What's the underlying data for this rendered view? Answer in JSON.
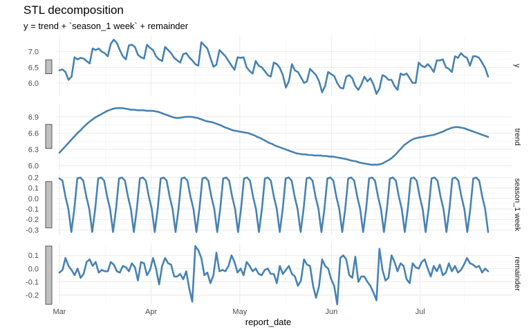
{
  "title": "STL decomposition",
  "subtitle": "y = trend + `season_1 week` + remainder",
  "chart_data": {
    "type": "line",
    "title": "STL decomposition",
    "subtitle": "y = trend + `season_1 week` + remainder",
    "xlabel": "report_date",
    "x_tick_labels": [
      "Mar",
      "Apr",
      "May",
      "Jun",
      "Jul"
    ],
    "x_tick_dates": [
      "2023-03-01",
      "2023-04-01",
      "2023-05-01",
      "2023-06-01",
      "2023-07-01"
    ],
    "x_range": [
      "2023-03-01",
      "2023-07-24"
    ],
    "grid": true,
    "line_color": "#4682B4",
    "scale_bar_color": "#C0C0C0",
    "panels": [
      {
        "name": "y",
        "yticks": [
          "7.0",
          "6.5",
          "6.0"
        ],
        "ytick_values": [
          7.0,
          6.5,
          6.0
        ],
        "ylim": [
          5.6,
          7.5
        ],
        "values": [
          6.4,
          6.43,
          6.35,
          6.1,
          6.2,
          6.82,
          6.75,
          6.8,
          6.78,
          6.7,
          6.62,
          7.1,
          7.05,
          7.1,
          7.0,
          6.95,
          6.85,
          7.25,
          7.38,
          7.28,
          7.05,
          6.85,
          6.75,
          7.2,
          7.22,
          7.15,
          6.9,
          6.82,
          6.78,
          7.22,
          7.12,
          7.05,
          6.85,
          6.75,
          6.7,
          7.15,
          7.05,
          6.95,
          6.8,
          6.72,
          6.65,
          6.92,
          6.95,
          6.82,
          6.72,
          6.6,
          6.55,
          7.3,
          7.2,
          7.1,
          6.8,
          6.52,
          6.58,
          7.05,
          6.95,
          6.85,
          6.7,
          6.55,
          6.42,
          6.82,
          6.8,
          6.82,
          6.5,
          6.38,
          6.3,
          6.7,
          6.55,
          6.5,
          6.38,
          6.25,
          6.2,
          6.65,
          6.6,
          6.48,
          6.25,
          5.85,
          6.05,
          6.6,
          6.4,
          6.35,
          6.18,
          6.0,
          6.05,
          6.45,
          6.35,
          6.25,
          6.05,
          5.7,
          5.9,
          6.35,
          6.28,
          6.22,
          6.0,
          5.85,
          5.82,
          6.2,
          6.25,
          6.15,
          5.9,
          5.78,
          5.95,
          6.2,
          6.05,
          6.15,
          5.95,
          5.65,
          5.82,
          6.25,
          6.2,
          6.1,
          6.1,
          5.9,
          5.78,
          6.3,
          6.25,
          6.3,
          6.15,
          6.0,
          6.0,
          6.65,
          6.55,
          6.5,
          6.6,
          6.5,
          6.35,
          6.72,
          6.72,
          6.75,
          6.5,
          6.45,
          6.35,
          6.85,
          6.8,
          6.95,
          6.85,
          6.8,
          6.55,
          6.85,
          6.85,
          6.8,
          6.65,
          6.48,
          6.2
        ]
      },
      {
        "name": "trend",
        "yticks": [
          "6.9",
          "6.6",
          "6.3",
          "6.0"
        ],
        "ytick_values": [
          6.9,
          6.6,
          6.3,
          6.0
        ],
        "ylim": [
          5.92,
          7.14
        ],
        "values": [
          6.24,
          6.3,
          6.36,
          6.42,
          6.48,
          6.54,
          6.6,
          6.65,
          6.71,
          6.76,
          6.81,
          6.85,
          6.89,
          6.92,
          6.95,
          6.98,
          7.01,
          7.03,
          7.05,
          7.06,
          7.06,
          7.06,
          7.05,
          7.04,
          7.03,
          7.03,
          7.02,
          7.02,
          7.02,
          7.01,
          7.01,
          7.01,
          7.0,
          6.99,
          6.97,
          6.95,
          6.93,
          6.91,
          6.89,
          6.88,
          6.88,
          6.89,
          6.9,
          6.9,
          6.9,
          6.89,
          6.88,
          6.86,
          6.84,
          6.82,
          6.81,
          6.8,
          6.78,
          6.76,
          6.74,
          6.71,
          6.69,
          6.67,
          6.65,
          6.64,
          6.63,
          6.62,
          6.61,
          6.6,
          6.58,
          6.56,
          6.53,
          6.51,
          6.48,
          6.45,
          6.42,
          6.4,
          6.37,
          6.35,
          6.33,
          6.31,
          6.29,
          6.27,
          6.25,
          6.23,
          6.22,
          6.21,
          6.21,
          6.2,
          6.2,
          6.19,
          6.19,
          6.19,
          6.18,
          6.18,
          6.17,
          6.17,
          6.16,
          6.15,
          6.14,
          6.13,
          6.12,
          6.1,
          6.09,
          6.08,
          6.06,
          6.05,
          6.04,
          6.03,
          6.02,
          6.02,
          6.02,
          6.03,
          6.05,
          6.08,
          6.11,
          6.15,
          6.2,
          6.26,
          6.32,
          6.38,
          6.42,
          6.46,
          6.49,
          6.51,
          6.52,
          6.53,
          6.54,
          6.55,
          6.56,
          6.57,
          6.59,
          6.61,
          6.63,
          6.66,
          6.68,
          6.7,
          6.71,
          6.71,
          6.7,
          6.69,
          6.67,
          6.65,
          6.63,
          6.61,
          6.59,
          6.57,
          6.55,
          6.53
        ]
      },
      {
        "name": "season_1 week",
        "yticks": [
          "0.2",
          "0.1",
          "0.0",
          "-0.1",
          "-0.2",
          "-0.3"
        ],
        "ytick_values": [
          0.2,
          0.1,
          0.0,
          -0.1,
          -0.2,
          -0.3
        ],
        "ylim": [
          -0.35,
          0.23
        ],
        "values": [
          0.19,
          0.17,
          0.02,
          -0.1,
          -0.32,
          -0.1,
          0.19,
          0.2,
          0.17,
          0.02,
          -0.1,
          -0.32,
          -0.1,
          0.19,
          0.2,
          0.17,
          0.02,
          -0.1,
          -0.32,
          -0.1,
          0.19,
          0.2,
          0.17,
          0.02,
          -0.1,
          -0.32,
          -0.1,
          0.19,
          0.2,
          0.17,
          0.02,
          -0.1,
          -0.32,
          -0.1,
          0.19,
          0.2,
          0.17,
          0.02,
          -0.1,
          -0.32,
          -0.1,
          0.19,
          0.2,
          0.17,
          0.02,
          -0.1,
          -0.32,
          -0.1,
          0.19,
          0.2,
          0.17,
          0.02,
          -0.1,
          -0.32,
          -0.1,
          0.19,
          0.2,
          0.17,
          0.02,
          -0.1,
          -0.32,
          -0.1,
          0.19,
          0.2,
          0.17,
          0.02,
          -0.1,
          -0.32,
          -0.1,
          0.19,
          0.2,
          0.17,
          0.02,
          -0.1,
          -0.32,
          -0.1,
          0.19,
          0.2,
          0.17,
          0.02,
          -0.1,
          -0.32,
          -0.1,
          0.19,
          0.2,
          0.17,
          0.02,
          -0.1,
          -0.32,
          -0.1,
          0.19,
          0.2,
          0.17,
          0.02,
          -0.1,
          -0.32,
          -0.1,
          0.19,
          0.2,
          0.17,
          0.02,
          -0.1,
          -0.32,
          -0.1,
          0.19,
          0.2,
          0.17,
          0.02,
          -0.1,
          -0.32,
          -0.1,
          0.19,
          0.2,
          0.17,
          0.02,
          -0.1,
          -0.32,
          -0.1,
          0.19,
          0.2,
          0.17,
          0.02,
          -0.1,
          -0.32,
          -0.1,
          0.19,
          0.2,
          0.17,
          0.02,
          -0.1,
          -0.32,
          -0.1,
          0.19,
          0.2,
          0.17,
          0.02,
          -0.1,
          -0.32,
          -0.1,
          0.19,
          0.2,
          0.17,
          0.02,
          -0.1,
          -0.32
        ]
      },
      {
        "name": "remainder",
        "yticks": [
          "0.1",
          "0.0",
          "-0.1",
          "-0.2"
        ],
        "ytick_values": [
          0.1,
          0.0,
          -0.1,
          -0.2
        ],
        "ylim": [
          -0.27,
          0.19
        ],
        "values": [
          -0.03,
          -0.01,
          0.08,
          0.02,
          -0.01,
          -0.05,
          0.0,
          -0.07,
          -0.04,
          0.05,
          0.07,
          0.02,
          0.05,
          -0.03,
          -0.01,
          -0.02,
          -0.02,
          0.05,
          0.03,
          -0.02,
          -0.03,
          0.02,
          0.01,
          -0.02,
          0.04,
          0.01,
          -0.09,
          0.05,
          0.04,
          -0.05,
          -0.01,
          0.08,
          0.0,
          -0.12,
          0.02,
          0.08,
          0.04,
          0.03,
          -0.06,
          -0.06,
          -0.04,
          -0.08,
          -0.02,
          -0.15,
          -0.25,
          0.17,
          0.14,
          0.08,
          -0.05,
          -0.03,
          -0.11,
          -0.05,
          0.12,
          -0.02,
          -0.01,
          -0.02,
          0.02,
          0.1,
          0.05,
          -0.03,
          0.0,
          -0.05,
          0.05,
          0.02,
          -0.02,
          0.0,
          -0.04,
          -0.05,
          -0.01,
          0.0,
          -0.04,
          -0.04,
          -0.11,
          0.02,
          -0.04,
          -0.01,
          0.02,
          -0.04,
          -0.06,
          -0.13,
          -0.09,
          0.07,
          0.03,
          0.02,
          -0.13,
          -0.22,
          -0.13,
          0.07,
          0.02,
          0.0,
          -0.08,
          -0.13,
          -0.27,
          0.08,
          0.1,
          0.07,
          -0.05,
          -0.07,
          0.09,
          -0.1,
          -0.06,
          -0.06,
          -0.1,
          -0.13,
          -0.18,
          -0.24,
          0.15,
          -0.01,
          -0.09,
          -0.07,
          0.1,
          0.05,
          -0.02,
          0.04,
          0.02,
          -0.08,
          -0.11,
          0.04,
          0.01,
          0.0,
          0.05,
          0.07,
          0.0,
          -0.06,
          0.02,
          -0.02,
          0.03,
          -0.05,
          -0.03,
          0.04,
          -0.02,
          0.02,
          -0.03,
          -0.01,
          0.03,
          0.08,
          0.04,
          0.03,
          0.01,
          0.02,
          -0.03,
          0.0,
          -0.02
        ]
      }
    ]
  }
}
